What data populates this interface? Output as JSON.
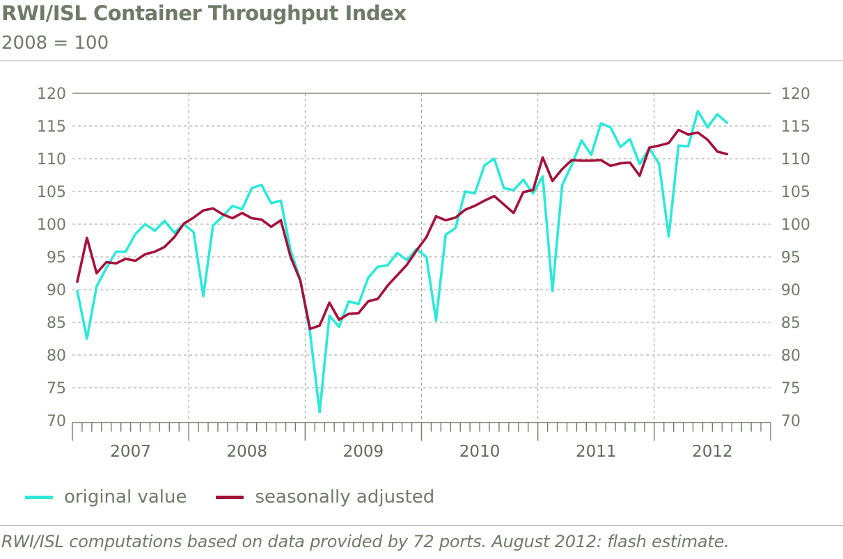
{
  "chart_data": {
    "type": "line",
    "title": "RWI/ISL Container Throughput Index",
    "subtitle": "2008 = 100",
    "xlabel": "",
    "ylabel": "",
    "ylim": [
      70,
      120
    ],
    "yticks": [
      "70",
      "75",
      "80",
      "85",
      "90",
      "95",
      "100",
      "105",
      "110",
      "115",
      "120"
    ],
    "year_labels": [
      "2007",
      "2008",
      "2009",
      "2010",
      "2011",
      "2012"
    ],
    "x_range": [
      "2007-01",
      "2012-12"
    ],
    "x": [
      "2007-01",
      "2007-02",
      "2007-03",
      "2007-04",
      "2007-05",
      "2007-06",
      "2007-07",
      "2007-08",
      "2007-09",
      "2007-10",
      "2007-11",
      "2007-12",
      "2008-01",
      "2008-02",
      "2008-03",
      "2008-04",
      "2008-05",
      "2008-06",
      "2008-07",
      "2008-08",
      "2008-09",
      "2008-10",
      "2008-11",
      "2008-12",
      "2009-01",
      "2009-02",
      "2009-03",
      "2009-04",
      "2009-05",
      "2009-06",
      "2009-07",
      "2009-08",
      "2009-09",
      "2009-10",
      "2009-11",
      "2009-12",
      "2010-01",
      "2010-02",
      "2010-03",
      "2010-04",
      "2010-05",
      "2010-06",
      "2010-07",
      "2010-08",
      "2010-09",
      "2010-10",
      "2010-11",
      "2010-12",
      "2011-01",
      "2011-02",
      "2011-03",
      "2011-04",
      "2011-05",
      "2011-06",
      "2011-07",
      "2011-08",
      "2011-09",
      "2011-10",
      "2011-11",
      "2011-12",
      "2012-01",
      "2012-02",
      "2012-03",
      "2012-04",
      "2012-05",
      "2012-06",
      "2012-07",
      "2012-08"
    ],
    "grid": true,
    "legend_position": "bottom-left",
    "series": [
      {
        "name": "original value",
        "color": "#2ee8d8",
        "values": [
          89.8,
          82.5,
          90.5,
          93.3,
          95.8,
          95.8,
          98.5,
          100.0,
          99.0,
          100.5,
          98.7,
          100.0,
          98.8,
          89.0,
          99.8,
          101.2,
          102.8,
          102.3,
          105.5,
          106.0,
          103.2,
          103.6,
          96.0,
          91.5,
          83.5,
          71.3,
          86.0,
          84.3,
          88.2,
          87.8,
          91.8,
          93.5,
          93.7,
          95.6,
          94.5,
          96.2,
          95.0,
          85.3,
          98.4,
          99.4,
          105.0,
          104.7,
          109.0,
          110.0,
          105.5,
          105.2,
          106.8,
          104.7,
          107.3,
          89.8,
          105.9,
          109.1,
          112.8,
          110.6,
          115.4,
          114.8,
          111.8,
          113.0,
          109.2,
          111.6,
          109.2,
          98.1,
          112.0,
          111.9,
          117.3,
          114.8,
          116.8,
          115.5
        ]
      },
      {
        "name": "seasonally adjusted",
        "color": "#a3123a",
        "values": [
          91.2,
          97.9,
          92.5,
          94.2,
          94.0,
          94.7,
          94.4,
          95.4,
          95.8,
          96.5,
          98.0,
          100.1,
          101.0,
          102.1,
          102.4,
          101.5,
          100.9,
          101.7,
          100.9,
          100.7,
          99.6,
          100.6,
          95.0,
          91.4,
          84.0,
          84.5,
          88.0,
          85.4,
          86.3,
          86.4,
          88.2,
          88.6,
          90.6,
          92.2,
          93.8,
          96.0,
          98.0,
          101.2,
          100.6,
          101.0,
          102.2,
          102.8,
          103.6,
          104.3,
          103.0,
          101.7,
          104.9,
          105.2,
          110.2,
          106.6,
          108.4,
          109.8,
          109.7,
          109.7,
          109.8,
          108.9,
          109.3,
          109.4,
          107.4,
          111.7,
          112.0,
          112.4,
          114.4,
          113.7,
          114.0,
          112.9,
          111.1,
          110.7
        ]
      }
    ]
  },
  "legend": {
    "items": [
      {
        "label": "original value",
        "color": "#2ee8d8"
      },
      {
        "label": "seasonally adjusted",
        "color": "#a3123a"
      }
    ]
  },
  "source_note": "RWI/ISL computations based on data provided by 72 ports. August 2012: flash estimate."
}
